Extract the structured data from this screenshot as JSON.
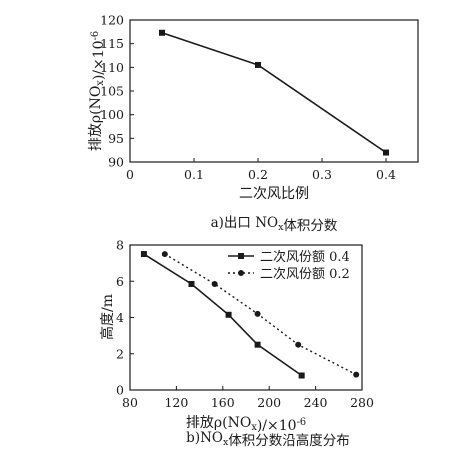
{
  "chart_data": [
    {
      "type": "line",
      "panel_caption": "a)出口 NOx体积分数",
      "xlabel": "二次风比例",
      "ylabel": "排放ρ(NOx)/×10⁻⁶",
      "xlim": [
        0,
        0.45
      ],
      "ylim": [
        90,
        120
      ],
      "xticks": [
        "0",
        "0.1",
        "0.2",
        "0.3",
        "0.4"
      ],
      "yticks": [
        "90",
        "95",
        "100",
        "105",
        "110",
        "115",
        "120"
      ],
      "grid": false,
      "series": [
        {
          "x": [
            0.05,
            0.2,
            0.4
          ],
          "y": [
            117.3,
            110.5,
            92.0
          ],
          "marker": "square",
          "style": "solid"
        }
      ]
    },
    {
      "type": "line",
      "panel_caption": "b)NOx体积分数沿高度分布",
      "xlabel": "排放ρ(NOx)/×10⁻⁶",
      "ylabel": "高度/m",
      "xlim": [
        80,
        280
      ],
      "ylim": [
        0,
        8
      ],
      "xticks": [
        "80",
        "120",
        "160",
        "200",
        "240",
        "280"
      ],
      "yticks": [
        "0",
        "2",
        "4",
        "6",
        "8"
      ],
      "grid": false,
      "legend_position": "top-right",
      "series": [
        {
          "name": "二次风份额 0.4",
          "x": [
            92,
            133,
            165,
            190,
            228
          ],
          "y": [
            7.5,
            5.85,
            4.15,
            2.5,
            0.8
          ],
          "marker": "square",
          "style": "solid"
        },
        {
          "name": "二次风份额 0.2",
          "x": [
            110,
            153,
            190,
            225,
            275
          ],
          "y": [
            7.5,
            5.85,
            4.2,
            2.5,
            0.85
          ],
          "marker": "circle",
          "style": "dotted"
        }
      ]
    }
  ]
}
